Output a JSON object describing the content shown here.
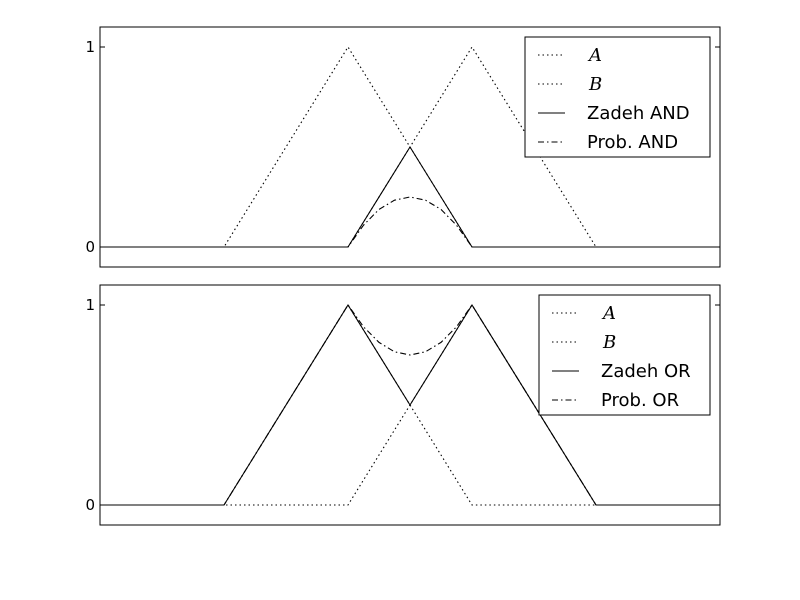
{
  "chart_data": [
    {
      "type": "line",
      "xlim": [
        0,
        1
      ],
      "ylim": [
        -0.1,
        1.1
      ],
      "yticks": [
        0,
        1
      ],
      "ytick_labels": [
        "0",
        "1"
      ],
      "legend_position": "upper-right",
      "series": [
        {
          "name": "A",
          "style": "dotted",
          "italic_label": true,
          "x": [
            0,
            0.2,
            0.4,
            0.6,
            1
          ],
          "y": [
            0,
            0,
            1,
            0,
            0
          ]
        },
        {
          "name": "B",
          "style": "dotted",
          "italic_label": true,
          "x": [
            0,
            0.4,
            0.6,
            0.8,
            1
          ],
          "y": [
            0,
            0,
            1,
            0,
            0
          ]
        },
        {
          "name": "Zadeh AND",
          "style": "solid",
          "italic_label": false,
          "x": [
            0,
            0.4,
            0.5,
            0.6,
            1
          ],
          "y": [
            0,
            0,
            0.5,
            0,
            0
          ]
        },
        {
          "name": "Prob. AND",
          "style": "dashdot",
          "italic_label": false,
          "x": [
            0,
            0.4,
            0.425,
            0.45,
            0.475,
            0.5,
            0.525,
            0.55,
            0.575,
            0.6,
            1
          ],
          "y": [
            0,
            0,
            0.109,
            0.188,
            0.234,
            0.25,
            0.234,
            0.188,
            0.109,
            0,
            0
          ]
        }
      ]
    },
    {
      "type": "line",
      "xlim": [
        0,
        1
      ],
      "ylim": [
        -0.1,
        1.1
      ],
      "yticks": [
        0,
        1
      ],
      "ytick_labels": [
        "0",
        "1"
      ],
      "legend_position": "upper-right",
      "series": [
        {
          "name": "A",
          "style": "dotted",
          "italic_label": true,
          "x": [
            0,
            0.2,
            0.4,
            0.6,
            1
          ],
          "y": [
            0,
            0,
            1,
            0,
            0
          ]
        },
        {
          "name": "B",
          "style": "dotted",
          "italic_label": true,
          "x": [
            0,
            0.4,
            0.6,
            0.8,
            1
          ],
          "y": [
            0,
            0,
            1,
            0,
            0
          ]
        },
        {
          "name": "Zadeh OR",
          "style": "solid",
          "italic_label": false,
          "x": [
            0,
            0.2,
            0.4,
            0.5,
            0.6,
            0.8,
            1
          ],
          "y": [
            0,
            0,
            1,
            0.5,
            1,
            0,
            0
          ]
        },
        {
          "name": "Prob. OR",
          "style": "dashdot",
          "italic_label": false,
          "x": [
            0,
            0.2,
            0.4,
            0.425,
            0.45,
            0.475,
            0.5,
            0.525,
            0.55,
            0.575,
            0.6,
            0.8,
            1
          ],
          "y": [
            0,
            0,
            1,
            0.891,
            0.813,
            0.766,
            0.75,
            0.766,
            0.813,
            0.891,
            1,
            0,
            0
          ]
        }
      ]
    }
  ]
}
